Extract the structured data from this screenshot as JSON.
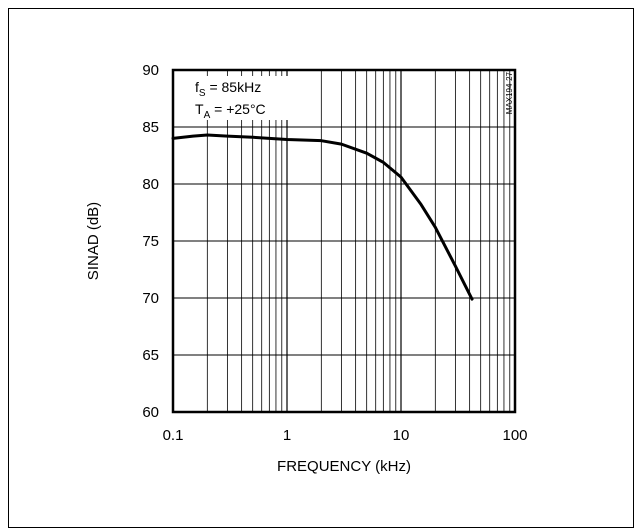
{
  "chart_data": {
    "type": "line",
    "title": "",
    "xlabel": "FREQUENCY (kHz)",
    "ylabel": "SINAD (dB)",
    "xscale": "log",
    "xlim": [
      0.1,
      100
    ],
    "ylim": [
      60,
      90
    ],
    "x_ticks": [
      0.1,
      1,
      10,
      100
    ],
    "x_tick_labels": [
      "0.1",
      "1",
      "10",
      "100"
    ],
    "y_ticks": [
      60,
      65,
      70,
      75,
      80,
      85,
      90
    ],
    "y_tick_labels": [
      "60",
      "65",
      "70",
      "75",
      "80",
      "85",
      "90"
    ],
    "grid": true,
    "annotation": {
      "fs_main": "f",
      "fs_sub": "S",
      "fs_value": " = 85kHz",
      "ta_main": "T",
      "ta_sub": "A",
      "ta_value": " = +25°C"
    },
    "figure_code": "MAX194-27",
    "series": [
      {
        "x": [
          0.1,
          0.15,
          0.2,
          0.3,
          0.5,
          0.7,
          1,
          2,
          3,
          5,
          7,
          10,
          15,
          20,
          30,
          42
        ],
        "y": [
          84.0,
          84.2,
          84.3,
          84.2,
          84.1,
          84.0,
          83.9,
          83.8,
          83.5,
          82.7,
          81.9,
          80.6,
          78.2,
          76.2,
          72.8,
          69.9
        ]
      }
    ]
  }
}
